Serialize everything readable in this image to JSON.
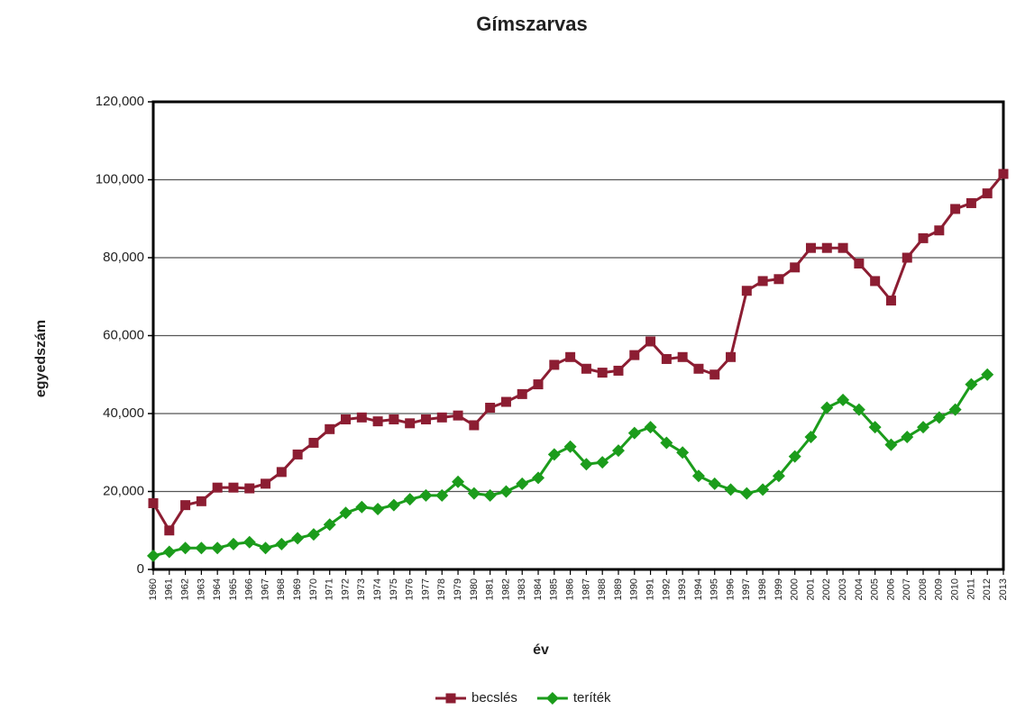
{
  "chart_data": {
    "type": "line",
    "title": "Gímszarvas",
    "x_label": "év",
    "y_label": "egyedszám",
    "categories": [
      "1960",
      "1961",
      "1962",
      "1963",
      "1964",
      "1965",
      "1966",
      "1967",
      "1968",
      "1969",
      "1970",
      "1971",
      "1972",
      "1973",
      "1974",
      "1975",
      "1976",
      "1977",
      "1978",
      "1979",
      "1980",
      "1981",
      "1982",
      "1983",
      "1984",
      "1985",
      "1986",
      "1987",
      "1988",
      "1989",
      "1990",
      "1991",
      "1992",
      "1993",
      "1994",
      "1995",
      "1996",
      "1997",
      "1998",
      "1999",
      "2000",
      "2001",
      "2002",
      "2003",
      "2004",
      "2005",
      "2006",
      "2007",
      "2008",
      "2009",
      "2010",
      "2011",
      "2012",
      "2013"
    ],
    "series": [
      {
        "name": "becslés",
        "color": "#8c1d32",
        "marker": "square",
        "values": [
          17000,
          10000,
          16500,
          17500,
          21000,
          21000,
          20800,
          22000,
          25000,
          29500,
          32500,
          36000,
          38500,
          39000,
          38000,
          38500,
          37500,
          38500,
          39000,
          39500,
          37000,
          41500,
          43000,
          45000,
          47500,
          52500,
          54500,
          51500,
          50500,
          51000,
          55000,
          58500,
          54000,
          54500,
          51500,
          50000,
          54500,
          71500,
          74000,
          74500,
          77500,
          82500,
          82500,
          82500,
          78500,
          74000,
          69000,
          80000,
          85000,
          87000,
          92500,
          94000,
          96500,
          101500
        ]
      },
      {
        "name": "teríték",
        "color": "#1b9c1b",
        "marker": "diamond",
        "values": [
          3500,
          4500,
          5500,
          5500,
          5500,
          6500,
          7000,
          5500,
          6500,
          8000,
          9000,
          11500,
          14500,
          16000,
          15500,
          16500,
          18000,
          19000,
          19000,
          22500,
          19500,
          19000,
          20000,
          22000,
          23500,
          29500,
          31500,
          27000,
          27500,
          30500,
          35000,
          36500,
          32500,
          30000,
          24000,
          22000,
          20500,
          19500,
          20500,
          24000,
          29000,
          34000,
          41500,
          43500,
          41000,
          36500,
          32000,
          34000,
          36500,
          39000,
          41000,
          47500,
          50000,
          null
        ]
      }
    ],
    "ylim": [
      0,
      120000
    ],
    "yticks": [
      0,
      {
        "value": 20000,
        "label": "20,000"
      },
      {
        "value": 40000,
        "label": "40,000"
      },
      {
        "value": 60000,
        "label": "60,000"
      },
      {
        "value": 80000,
        "label": "80,000"
      },
      {
        "value": 100000,
        "label": "100,000"
      },
      {
        "value": 120000,
        "label": "120,000"
      }
    ],
    "grid": true,
    "legend": "bottom"
  }
}
